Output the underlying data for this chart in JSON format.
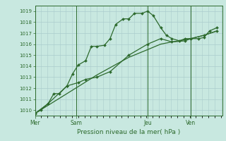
{
  "background_color": "#c8e8e0",
  "grid_color": "#aacccc",
  "line_color": "#2d6a2d",
  "marker_color": "#2d6a2d",
  "title": "Pression niveau de la mer( hPa )",
  "ylim": [
    1009.5,
    1019.5
  ],
  "yticks": [
    1010,
    1011,
    1012,
    1013,
    1014,
    1015,
    1016,
    1017,
    1018,
    1019
  ],
  "day_labels": [
    "Mer",
    "Sam",
    "Jeu",
    "Ven"
  ],
  "day_positions": [
    0.0,
    0.22,
    0.6,
    0.83
  ],
  "xlim": [
    0.0,
    1.0
  ],
  "series1_x": [
    0.0,
    0.03,
    0.07,
    0.1,
    0.13,
    0.17,
    0.2,
    0.23,
    0.27,
    0.3,
    0.33,
    0.37,
    0.4,
    0.43,
    0.47,
    0.5,
    0.53,
    0.57,
    0.6,
    0.63,
    0.67,
    0.7,
    0.73,
    0.77,
    0.8,
    0.83,
    0.87,
    0.9,
    0.93,
    0.97
  ],
  "series1_y": [
    1009.7,
    1010.0,
    1010.6,
    1011.5,
    1011.5,
    1012.2,
    1013.3,
    1014.1,
    1014.5,
    1015.8,
    1015.8,
    1015.9,
    1016.5,
    1017.8,
    1018.3,
    1018.3,
    1018.8,
    1018.8,
    1019.0,
    1018.6,
    1017.5,
    1016.8,
    1016.5,
    1016.3,
    1016.5,
    1016.5,
    1016.5,
    1016.6,
    1017.2,
    1017.5
  ],
  "series2_x": [
    0.0,
    0.07,
    0.17,
    0.23,
    0.27,
    0.33,
    0.4,
    0.5,
    0.6,
    0.67,
    0.73,
    0.8,
    0.83,
    0.9,
    0.97
  ],
  "series2_y": [
    1009.7,
    1010.6,
    1012.2,
    1012.5,
    1012.8,
    1013.0,
    1013.5,
    1015.0,
    1016.0,
    1016.5,
    1016.2,
    1016.3,
    1016.5,
    1016.8,
    1017.2
  ],
  "series3_x": [
    0.0,
    0.17,
    0.33,
    0.5,
    0.6,
    0.67,
    0.73,
    0.8,
    0.83,
    0.9,
    0.97
  ],
  "series3_y": [
    1009.7,
    1011.5,
    1013.2,
    1014.8,
    1015.5,
    1016.0,
    1016.2,
    1016.4,
    1016.5,
    1016.8,
    1017.2
  ]
}
